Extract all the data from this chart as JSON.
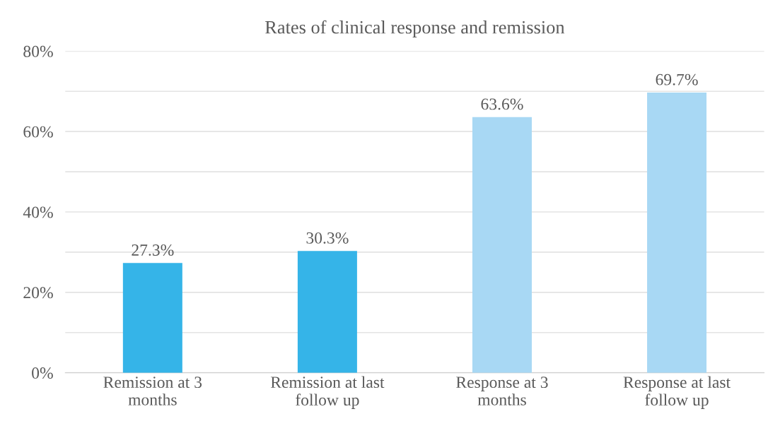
{
  "chart_data": {
    "type": "bar",
    "title": "Rates of clinical response and remission",
    "categories": [
      "Remission at 3\nmonths",
      "Remission at last\nfollow up",
      "Response at 3\nmonths",
      "Response at last\nfollow up"
    ],
    "values": [
      27.3,
      30.3,
      63.6,
      69.7
    ],
    "colors": [
      "#35b4e8",
      "#35b4e8",
      "#a8d8f4",
      "#a8d8f4"
    ],
    "value_labels": [
      "27.3%",
      "30.3%",
      "63.6%",
      "69.7%"
    ],
    "ylim": [
      0,
      80
    ],
    "yticks": [
      {
        "value": 0,
        "label": "0%"
      },
      {
        "value": 10,
        "label": null
      },
      {
        "value": 20,
        "label": "20%"
      },
      {
        "value": 30,
        "label": null
      },
      {
        "value": 40,
        "label": "40%"
      },
      {
        "value": 50,
        "label": null
      },
      {
        "value": 60,
        "label": "60%"
      },
      {
        "value": 70,
        "label": null
      },
      {
        "value": 80,
        "label": "80%"
      }
    ],
    "grid": "y",
    "legend": false
  }
}
